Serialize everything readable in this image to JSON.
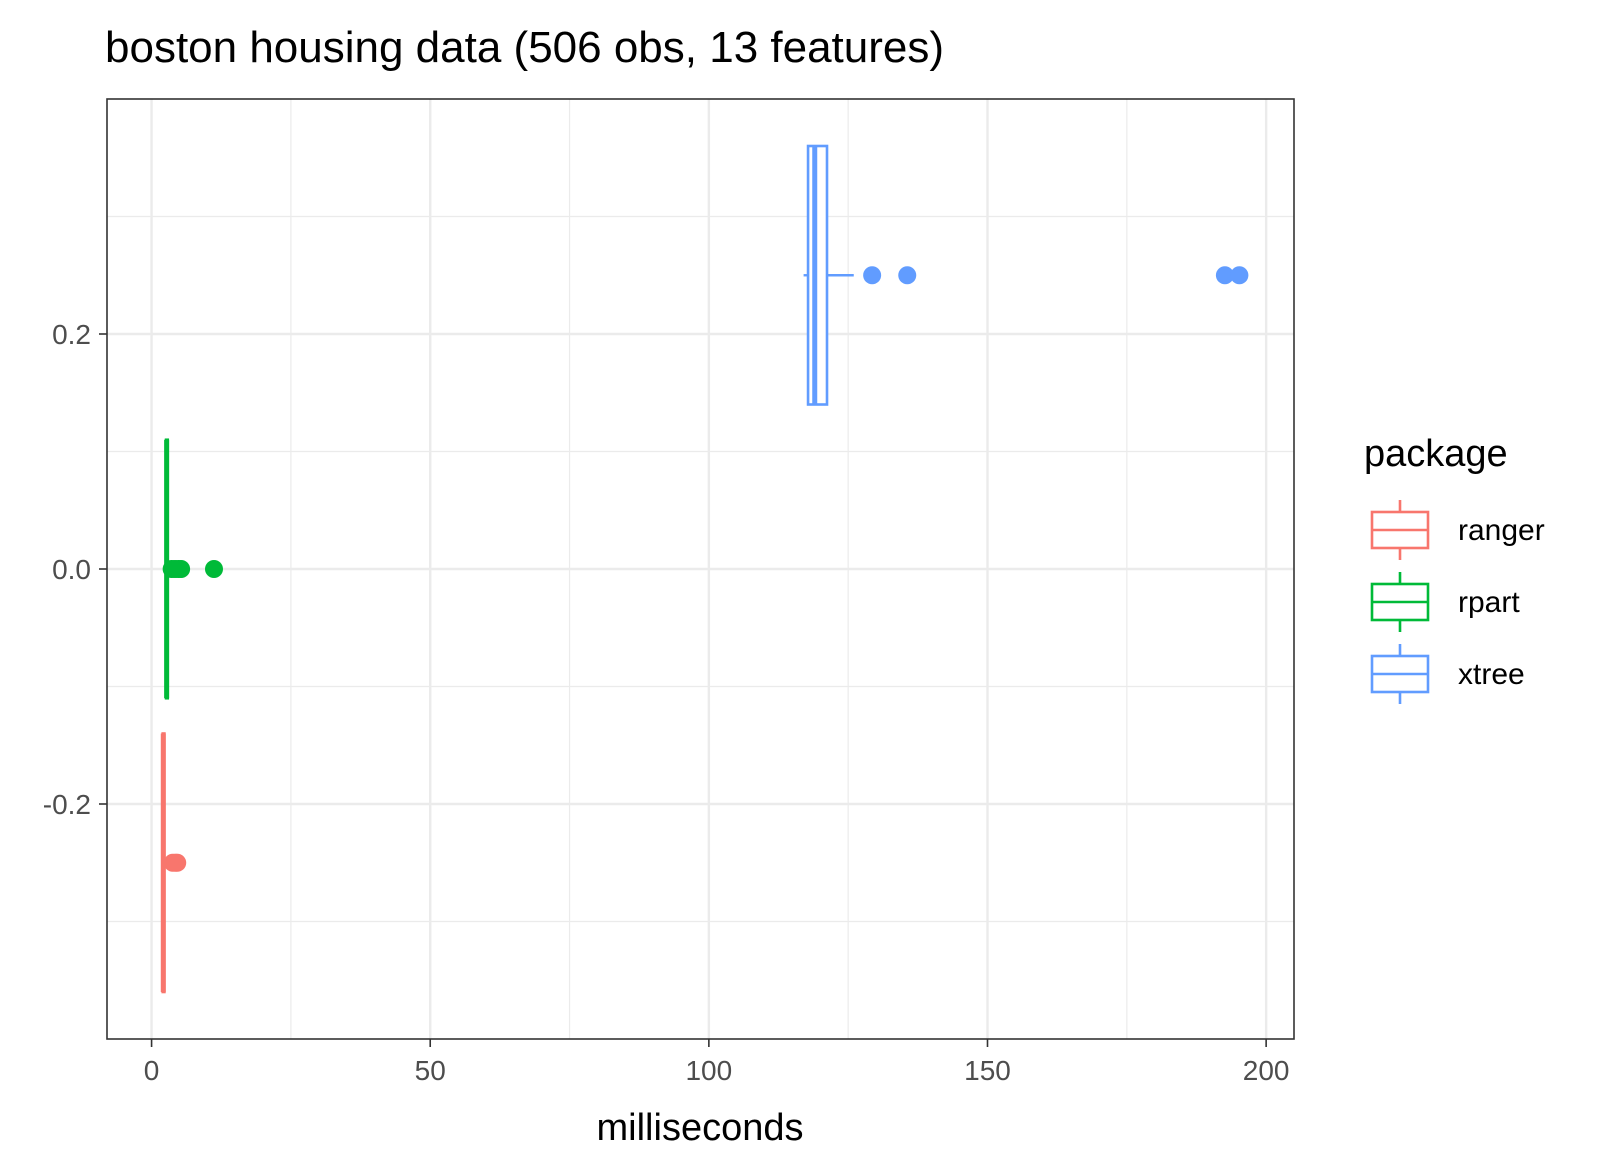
{
  "chart_data": {
    "type": "boxplot",
    "orientation": "horizontal",
    "title": "boston housing data (506 obs, 13 features)",
    "xlabel": "milliseconds",
    "ylabel": "",
    "xlim": [
      -8,
      205
    ],
    "ylim": [
      -0.4,
      0.4
    ],
    "x_ticks": [
      0,
      50,
      100,
      150,
      200
    ],
    "x_tick_labels": [
      "0",
      "50",
      "100",
      "150",
      "200"
    ],
    "y_ticks": [
      -0.2,
      0.0,
      0.2
    ],
    "y_tick_labels": [
      "-0.2",
      "0.0",
      "0.2"
    ],
    "grid": true,
    "legend": {
      "title": "package",
      "position": "right",
      "entries": [
        "ranger",
        "rpart",
        "xtree"
      ]
    },
    "series": [
      {
        "name": "ranger",
        "color": "#F8766D",
        "y_center": -0.25,
        "y_range": [
          -0.36,
          -0.14
        ],
        "whisker_low": 1.8,
        "q1": 2.0,
        "median": 2.1,
        "q3": 2.3,
        "whisker_high": 2.6,
        "outliers": [
          3.8,
          4.3,
          4.6
        ]
      },
      {
        "name": "rpart",
        "color": "#00BA38",
        "y_center": 0.0,
        "y_range": [
          -0.11,
          0.11
        ],
        "whisker_low": 2.4,
        "q1": 2.6,
        "median": 2.7,
        "q3": 2.9,
        "whisker_high": 3.2,
        "outliers": [
          3.6,
          4.2,
          4.8,
          5.3,
          11.2
        ]
      },
      {
        "name": "xtree",
        "color": "#619CFF",
        "y_center": 0.25,
        "y_range": [
          0.14,
          0.36
        ],
        "whisker_low": 117.0,
        "q1": 117.8,
        "median": 119.0,
        "q3": 121.2,
        "whisker_high": 126.0,
        "outliers": [
          129.3,
          135.6,
          192.6,
          195.2
        ]
      }
    ]
  }
}
